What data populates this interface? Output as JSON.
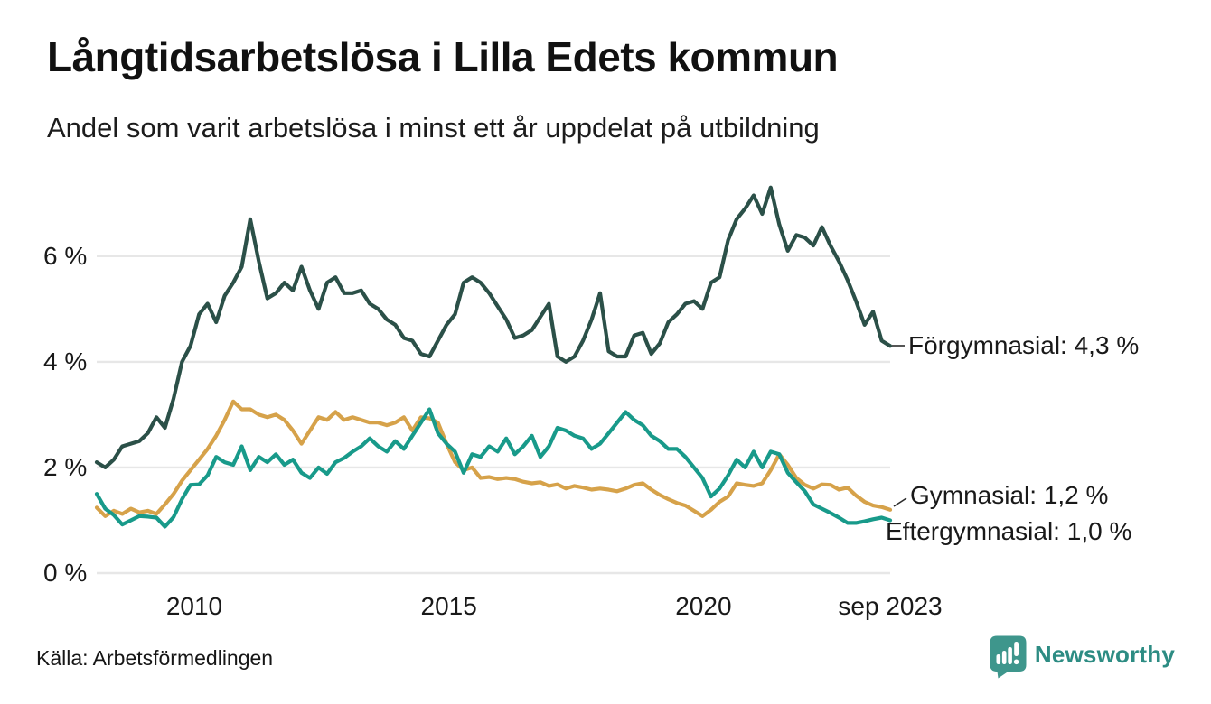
{
  "chart_data": {
    "type": "line",
    "title": "Långtidsarbetslösa i Lilla Edets kommun",
    "subtitle": "Andel som varit arbetslösa i minst ett år uppdelat på utbildning",
    "source": "Källa: Arbetsförmedlingen",
    "x_unit": "year",
    "x_start": 2008.083,
    "x_end": 2023.667,
    "x_ticks": [
      {
        "value": 2010,
        "label": "2010"
      },
      {
        "value": 2015,
        "label": "2015"
      },
      {
        "value": 2020,
        "label": "2020"
      },
      {
        "value": 2023.667,
        "label": "sep 2023"
      }
    ],
    "y_ticks": [
      {
        "value": 0,
        "label": "0 %"
      },
      {
        "value": 2,
        "label": "2 %"
      },
      {
        "value": 4,
        "label": "4 %"
      },
      {
        "value": 6,
        "label": "6 %"
      }
    ],
    "ylim": [
      0,
      7.5
    ],
    "grid": "horizontal",
    "grid_color": "#e7e7e7",
    "legend": "end-of-line-labels",
    "series": [
      {
        "id": "forgymnasial",
        "name": "Förgymnasial",
        "color": "#2b5048",
        "end_label": "Förgymnasial: 4,3 %",
        "values": [
          2.1,
          2.0,
          2.15,
          2.4,
          2.45,
          2.5,
          2.65,
          2.95,
          2.75,
          3.3,
          4.0,
          4.3,
          4.9,
          5.1,
          4.75,
          5.25,
          5.5,
          5.8,
          6.7,
          5.9,
          5.2,
          5.3,
          5.5,
          5.35,
          5.8,
          5.35,
          5.0,
          5.5,
          5.6,
          5.3,
          5.3,
          5.35,
          5.1,
          5.0,
          4.8,
          4.7,
          4.45,
          4.4,
          4.15,
          4.1,
          4.4,
          4.7,
          4.9,
          5.5,
          5.6,
          5.5,
          5.3,
          5.05,
          4.8,
          4.45,
          4.5,
          4.6,
          4.85,
          5.1,
          4.1,
          4.0,
          4.1,
          4.4,
          4.8,
          5.3,
          4.2,
          4.1,
          4.1,
          4.5,
          4.55,
          4.15,
          4.35,
          4.75,
          4.9,
          5.1,
          5.15,
          5.0,
          5.5,
          5.6,
          6.3,
          6.7,
          6.9,
          7.15,
          6.8,
          7.3,
          6.6,
          6.1,
          6.4,
          6.35,
          6.2,
          6.55,
          6.2,
          5.9,
          5.55,
          5.15,
          4.7,
          4.95,
          4.4,
          4.3
        ]
      },
      {
        "id": "gymnasial",
        "name": "Gymnasial",
        "color": "#d6a24a",
        "end_label": "Gymnasial: 1,2 %",
        "values": [
          1.24,
          1.08,
          1.18,
          1.12,
          1.22,
          1.15,
          1.18,
          1.12,
          1.3,
          1.5,
          1.75,
          1.95,
          2.15,
          2.35,
          2.6,
          2.9,
          3.25,
          3.1,
          3.1,
          3.0,
          2.95,
          3.0,
          2.9,
          2.7,
          2.45,
          2.7,
          2.95,
          2.9,
          3.05,
          2.9,
          2.95,
          2.9,
          2.85,
          2.85,
          2.8,
          2.85,
          2.95,
          2.7,
          2.95,
          2.93,
          2.85,
          2.45,
          2.1,
          1.95,
          2.0,
          1.8,
          1.82,
          1.78,
          1.8,
          1.78,
          1.73,
          1.7,
          1.72,
          1.65,
          1.68,
          1.6,
          1.65,
          1.62,
          1.58,
          1.6,
          1.58,
          1.55,
          1.6,
          1.67,
          1.7,
          1.58,
          1.48,
          1.4,
          1.33,
          1.28,
          1.18,
          1.08,
          1.2,
          1.35,
          1.45,
          1.7,
          1.67,
          1.65,
          1.7,
          1.95,
          2.25,
          2.05,
          1.8,
          1.67,
          1.6,
          1.68,
          1.67,
          1.58,
          1.62,
          1.47,
          1.35,
          1.28,
          1.25,
          1.2
        ]
      },
      {
        "id": "eftergymnasial",
        "name": "Eftergymnasial",
        "color": "#189a8a",
        "end_label": "Eftergymnasial: 1,0 %",
        "values": [
          1.5,
          1.22,
          1.1,
          0.92,
          1.0,
          1.08,
          1.07,
          1.05,
          0.88,
          1.06,
          1.4,
          1.67,
          1.68,
          1.85,
          2.2,
          2.1,
          2.05,
          2.4,
          1.95,
          2.2,
          2.1,
          2.25,
          2.05,
          2.15,
          1.9,
          1.8,
          2.0,
          1.88,
          2.1,
          2.18,
          2.3,
          2.4,
          2.55,
          2.4,
          2.3,
          2.5,
          2.35,
          2.6,
          2.85,
          3.1,
          2.65,
          2.45,
          2.3,
          1.9,
          2.25,
          2.2,
          2.4,
          2.3,
          2.55,
          2.25,
          2.4,
          2.6,
          2.2,
          2.4,
          2.75,
          2.7,
          2.6,
          2.55,
          2.35,
          2.45,
          2.65,
          2.85,
          3.05,
          2.9,
          2.8,
          2.6,
          2.5,
          2.35,
          2.35,
          2.2,
          2.0,
          1.8,
          1.45,
          1.6,
          1.85,
          2.15,
          2.0,
          2.3,
          2.0,
          2.3,
          2.25,
          1.9,
          1.72,
          1.55,
          1.3,
          1.22,
          1.14,
          1.05,
          0.95,
          0.95,
          0.98,
          1.02,
          1.05,
          1.0
        ]
      }
    ]
  },
  "footer": {
    "brand": "Newsworthy"
  },
  "brand_colors": {
    "icon": "#3e968c",
    "wordmark": "#2d8c83"
  }
}
